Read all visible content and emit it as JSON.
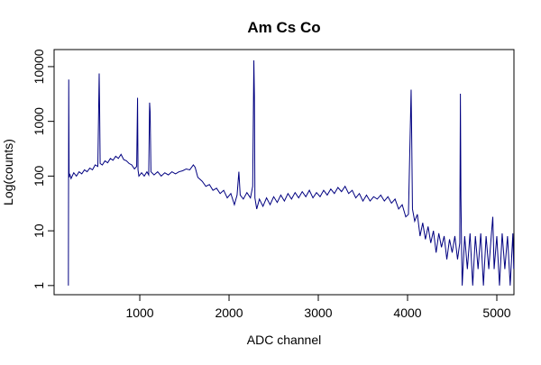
{
  "chart_data": {
    "type": "line",
    "title": "Am Cs Co",
    "x_label": "ADC channel",
    "y_label": "Log(counts)",
    "log_y": true,
    "color": "#000080",
    "x": [
      200,
      204,
      208,
      215,
      230,
      260,
      290,
      320,
      350,
      380,
      410,
      440,
      470,
      500,
      530,
      545,
      550,
      556,
      580,
      610,
      640,
      670,
      700,
      730,
      760,
      790,
      820,
      850,
      880,
      910,
      940,
      965,
      975,
      980,
      990,
      1020,
      1050,
      1080,
      1100,
      1110,
      1116,
      1125,
      1160,
      1200,
      1240,
      1280,
      1320,
      1360,
      1400,
      1440,
      1480,
      1520,
      1560,
      1600,
      1620,
      1650,
      1700,
      1740,
      1780,
      1820,
      1860,
      1900,
      1940,
      1980,
      2020,
      2060,
      2090,
      2110,
      2125,
      2160,
      2200,
      2240,
      2265,
      2278,
      2284,
      2290,
      2310,
      2340,
      2380,
      2420,
      2460,
      2500,
      2540,
      2580,
      2620,
      2660,
      2700,
      2740,
      2780,
      2820,
      2860,
      2900,
      2940,
      2980,
      3020,
      3060,
      3100,
      3140,
      3180,
      3220,
      3260,
      3300,
      3340,
      3380,
      3420,
      3460,
      3500,
      3540,
      3580,
      3620,
      3660,
      3700,
      3740,
      3780,
      3820,
      3860,
      3900,
      3940,
      3980,
      4010,
      4040,
      4046,
      4055,
      4080,
      4110,
      4140,
      4170,
      4200,
      4230,
      4260,
      4290,
      4320,
      4350,
      4380,
      4410,
      4440,
      4470,
      4500,
      4530,
      4560,
      4585,
      4592,
      4598,
      4605,
      4612,
      4640,
      4670,
      4700,
      4730,
      4760,
      4790,
      4820,
      4850,
      4880,
      4910,
      4940,
      4955,
      4970,
      5000,
      5030,
      5060,
      5090,
      5120,
      5150,
      5180,
      5190
    ],
    "values": [
      1,
      5800,
      95,
      110,
      90,
      115,
      100,
      120,
      110,
      130,
      120,
      140,
      130,
      160,
      150,
      7500,
      1700,
      170,
      160,
      190,
      175,
      210,
      195,
      230,
      210,
      250,
      200,
      190,
      170,
      160,
      135,
      150,
      2700,
      130,
      100,
      115,
      100,
      120,
      105,
      2200,
      1500,
      120,
      105,
      120,
      100,
      115,
      105,
      120,
      110,
      120,
      125,
      135,
      130,
      160,
      145,
      95,
      80,
      65,
      70,
      55,
      60,
      48,
      55,
      40,
      48,
      30,
      45,
      120,
      45,
      38,
      50,
      40,
      65,
      13000,
      3000,
      40,
      25,
      38,
      28,
      40,
      30,
      42,
      33,
      45,
      35,
      48,
      38,
      50,
      40,
      52,
      42,
      55,
      40,
      50,
      42,
      55,
      45,
      58,
      48,
      62,
      52,
      65,
      48,
      55,
      40,
      48,
      35,
      45,
      35,
      42,
      38,
      45,
      35,
      42,
      32,
      38,
      25,
      30,
      18,
      20,
      3800,
      600,
      25,
      15,
      20,
      8,
      14,
      7,
      12,
      6,
      10,
      4,
      9,
      5,
      8,
      3,
      7,
      4,
      8,
      3,
      6,
      3200,
      40,
      5,
      1,
      8,
      2,
      9,
      1,
      8,
      2,
      9,
      1,
      8,
      2,
      9,
      18,
      2,
      8,
      1,
      9,
      2,
      8,
      1,
      9,
      2
    ],
    "xlim": [
      40,
      5192
    ],
    "xticks": [
      1000,
      2000,
      3000,
      4000,
      5000
    ],
    "ylim": [
      0.68,
      20500
    ],
    "yticks": [
      1,
      10,
      100,
      1000,
      10000
    ]
  }
}
